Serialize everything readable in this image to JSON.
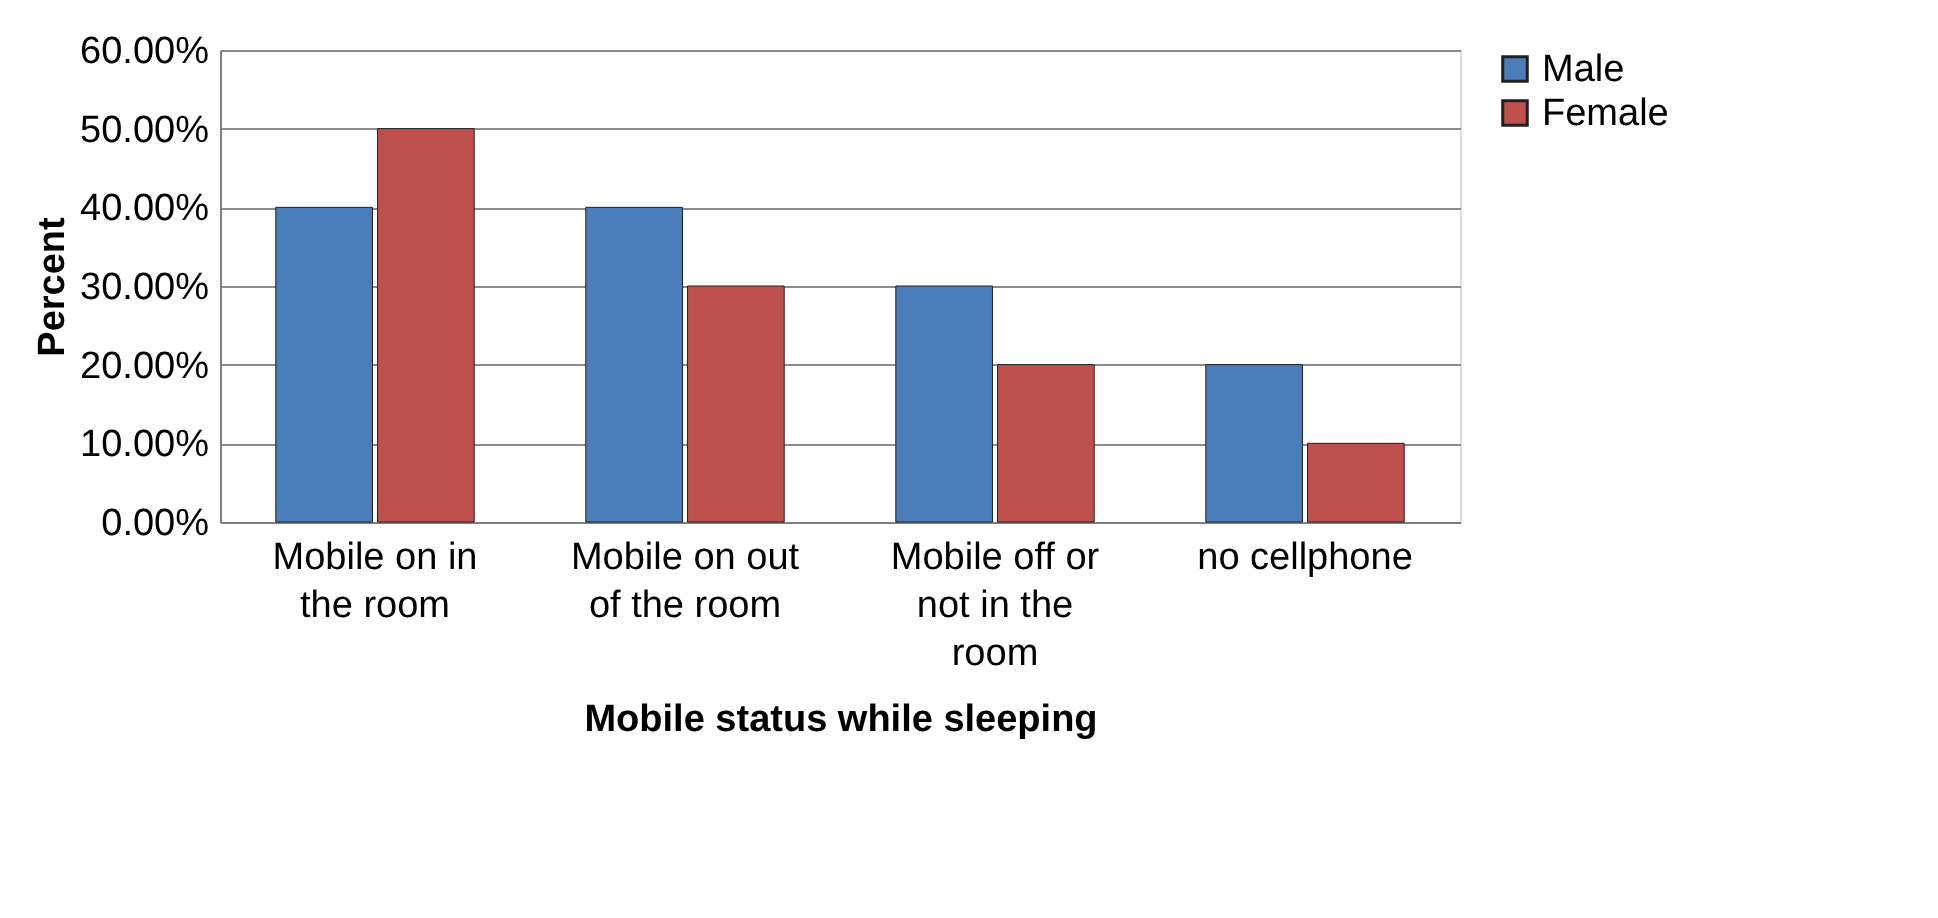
{
  "chart_data": {
    "type": "bar",
    "xlabel": "Mobile status while sleeping",
    "ylabel": "Percent",
    "categories": [
      "Mobile on in the room",
      "Mobile on out of the room",
      "Mobile off or not in the room",
      "no cellphone"
    ],
    "series": [
      {
        "name": "Male",
        "color": "#4a7ebb",
        "values": [
          40,
          40,
          30,
          20
        ]
      },
      {
        "name": "Female",
        "color": "#c0504d",
        "values": [
          50,
          30,
          20,
          10
        ]
      }
    ],
    "ylim": [
      0,
      60
    ],
    "yticks": [
      {
        "value": 0,
        "label": "0.00%"
      },
      {
        "value": 10,
        "label": "10.00%"
      },
      {
        "value": 20,
        "label": "20.00%"
      },
      {
        "value": 30,
        "label": "30.00%"
      },
      {
        "value": 40,
        "label": "40.00%"
      },
      {
        "value": 50,
        "label": "50.00%"
      },
      {
        "value": 60,
        "label": "60.00%"
      }
    ],
    "grid": "y",
    "legend": "right"
  }
}
